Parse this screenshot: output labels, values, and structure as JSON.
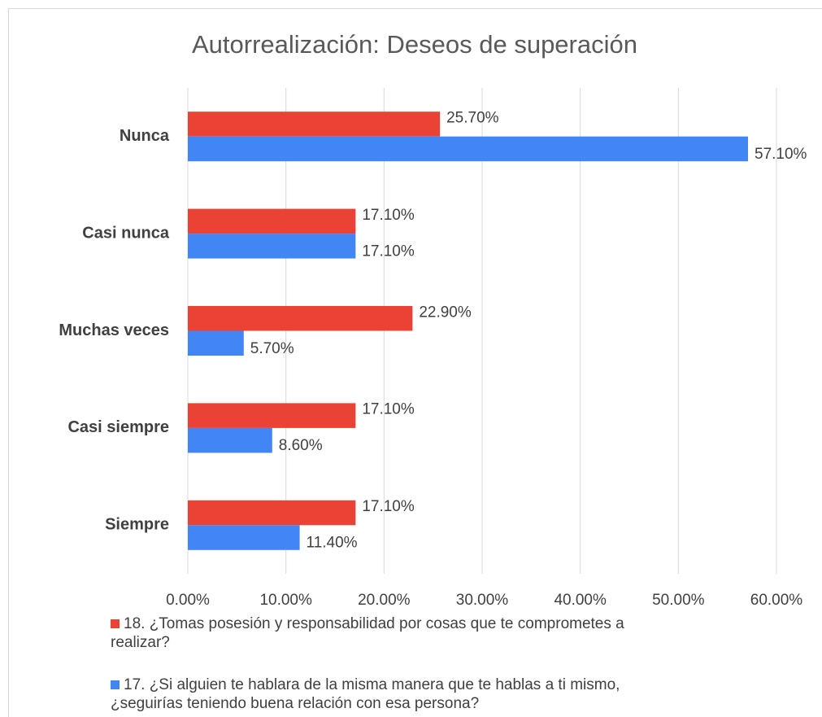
{
  "chart_data": {
    "type": "hbar",
    "title": "Autorrealización: Deseos de superación",
    "categories": [
      "Nunca",
      "Casi nunca",
      "Muchas veces",
      "Casi siempre",
      "Siempre"
    ],
    "series": [
      {
        "name": "18. ¿Tomas posesión y responsabilidad por cosas que te comprometes a realizar?",
        "color": "#ea4335",
        "values": [
          25.7,
          17.1,
          22.9,
          17.1,
          17.1
        ],
        "value_labels": [
          "25.70%",
          "17.10%",
          "22.90%",
          "17.10%",
          "17.10%"
        ]
      },
      {
        "name": "17. ¿Si alguien te hablara de la misma manera que te hablas a ti mismo, ¿seguirías teniendo buena relación con esa persona?",
        "color": "#4285f4",
        "values": [
          57.1,
          17.1,
          5.7,
          8.6,
          11.4
        ],
        "value_labels": [
          "57.10%",
          "17.10%",
          "5.70%",
          "8.60%",
          "11.40%"
        ]
      }
    ],
    "xlim": [
      0,
      60
    ],
    "xticks": [
      {
        "value": 0,
        "label": "0.00%"
      },
      {
        "value": 10,
        "label": "10.00%"
      },
      {
        "value": 20,
        "label": "20.00%"
      },
      {
        "value": 30,
        "label": "30.00%"
      },
      {
        "value": 40,
        "label": "40.00%"
      },
      {
        "value": 50,
        "label": "50.00%"
      },
      {
        "value": 60,
        "label": "60.00%"
      }
    ],
    "grid": true,
    "legend": "bottom"
  }
}
